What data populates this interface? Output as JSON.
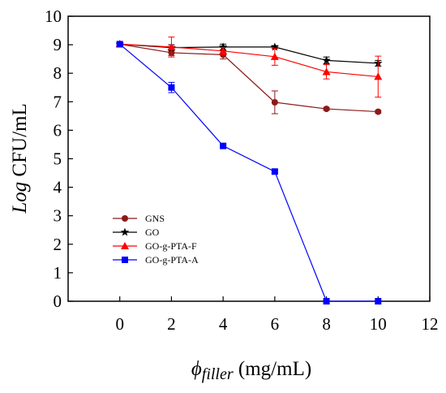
{
  "chart_data": {
    "type": "line",
    "title": "",
    "xlabel": {
      "symbol": "ϕ",
      "subscript": "filler",
      "unit": " (mg/mL)"
    },
    "ylabel": {
      "italic": "Log",
      "rest": " CFU/mL"
    },
    "xlim": [
      -2,
      12
    ],
    "ylim": [
      0,
      10
    ],
    "xticks": [
      0,
      2,
      4,
      6,
      8,
      10,
      12
    ],
    "yticks": [
      0,
      1,
      2,
      3,
      4,
      5,
      6,
      7,
      8,
      9,
      10
    ],
    "grid": false,
    "legend_position": "lower-left",
    "series": [
      {
        "name": "GNS",
        "color": "#8b1a1a",
        "marker": "circle",
        "x": [
          0,
          2,
          4,
          6,
          8,
          10
        ],
        "y": [
          9.02,
          8.72,
          8.65,
          6.98,
          6.75,
          6.65
        ],
        "err": [
          0.05,
          0.1,
          0.15,
          0.4,
          0.05,
          0.05
        ]
      },
      {
        "name": "GO",
        "color": "#000000",
        "marker": "star",
        "x": [
          0,
          2,
          4,
          6,
          8,
          10
        ],
        "y": [
          9.02,
          8.9,
          8.92,
          8.92,
          8.45,
          8.35
        ],
        "err": [
          0.05,
          0.1,
          0.1,
          0.05,
          0.12,
          0.1
        ]
      },
      {
        "name": "GO-g-PTA-F",
        "color": "#ff0000",
        "marker": "triangle",
        "x": [
          0,
          2,
          4,
          6,
          8,
          10
        ],
        "y": [
          9.02,
          8.92,
          8.78,
          8.58,
          8.05,
          7.88
        ],
        "err": [
          0.05,
          0.35,
          0.12,
          0.3,
          0.25,
          0.72
        ]
      },
      {
        "name": "GO-g-PTA-A",
        "color": "#0000ff",
        "marker": "square",
        "x": [
          0,
          2,
          4,
          6,
          8,
          10
        ],
        "y": [
          9.02,
          7.5,
          5.45,
          4.55,
          0.0,
          0.0
        ],
        "err": [
          0.05,
          0.18,
          0.05,
          0.05,
          0.0,
          0.0
        ]
      }
    ]
  }
}
